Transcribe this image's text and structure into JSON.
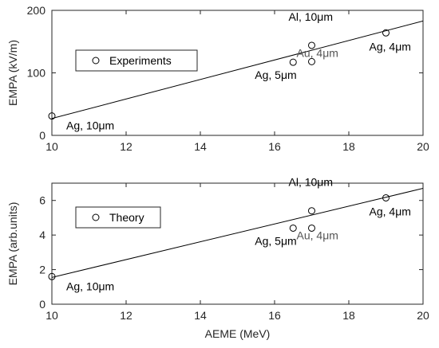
{
  "chart_data": [
    {
      "type": "scatter",
      "xlabel": "",
      "ylabel": "EMPA (kV/m)",
      "xlim": [
        10,
        20
      ],
      "ylim": [
        0,
        200
      ],
      "xticks": [
        10,
        12,
        14,
        16,
        18,
        20
      ],
      "yticks": [
        0,
        100,
        200
      ],
      "grid": false,
      "legend": {
        "label": "Experiments",
        "placement": "upper-left"
      },
      "points": [
        {
          "x": 10,
          "y": 31,
          "label": "Ag, 10μm",
          "label_color": "#000000",
          "anchor": "below-right"
        },
        {
          "x": 16.5,
          "y": 117,
          "label": "Ag, 5μm",
          "label_color": "#000000",
          "anchor": "below-left"
        },
        {
          "x": 17,
          "y": 118,
          "label": "Au, 4μm",
          "label_color": "#555555",
          "anchor": "right"
        },
        {
          "x": 17,
          "y": 144,
          "label": "Al, 10μm",
          "label_color": "#000000",
          "anchor": "above"
        },
        {
          "x": 19,
          "y": 164,
          "label": "Ag, 4μm",
          "label_color": "#000000",
          "anchor": "below"
        }
      ],
      "fit_line": {
        "x": [
          10,
          20
        ],
        "y": [
          27,
          183
        ]
      }
    },
    {
      "type": "scatter",
      "xlabel": "AEME (MeV)",
      "ylabel": "EMPA (arb.units)",
      "xlim": [
        10,
        20
      ],
      "ylim": [
        0,
        7
      ],
      "xticks": [
        10,
        12,
        14,
        16,
        18,
        20
      ],
      "yticks": [
        0,
        2,
        4,
        6
      ],
      "grid": false,
      "legend": {
        "label": "Theory",
        "placement": "upper-left"
      },
      "points": [
        {
          "x": 10,
          "y": 1.6,
          "label": "Ag, 10μm",
          "label_color": "#000000",
          "anchor": "below-right"
        },
        {
          "x": 16.5,
          "y": 4.4,
          "label": "Ag, 5μm",
          "label_color": "#000000",
          "anchor": "below-left"
        },
        {
          "x": 17,
          "y": 4.4,
          "label": "Au, 4μm",
          "label_color": "#555555",
          "anchor": "right"
        },
        {
          "x": 17,
          "y": 5.4,
          "label": "Al, 10μm",
          "label_color": "#000000",
          "anchor": "above"
        },
        {
          "x": 19,
          "y": 6.15,
          "label": "Ag, 4μm",
          "label_color": "#000000",
          "anchor": "below"
        }
      ],
      "fit_line": {
        "x": [
          10,
          20
        ],
        "y": [
          1.55,
          6.7
        ]
      }
    }
  ]
}
